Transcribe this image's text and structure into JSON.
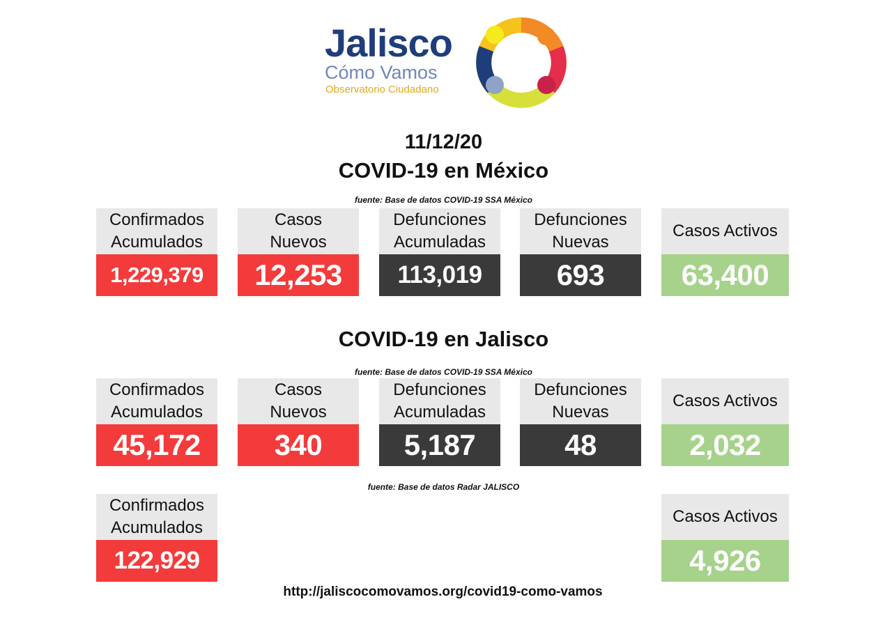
{
  "logo": {
    "title": "Jalisco",
    "subtitle": "Cómo Vamos",
    "tagline": "Observatorio Ciudadano",
    "ring_colors": [
      "#f7c21d",
      "#f28a25",
      "#e52d4c",
      "#d7df3a",
      "#6a8fc8",
      "#1f3d7a"
    ]
  },
  "date": "11/12/20",
  "sections": {
    "mexico": {
      "title": "COVID-19 en México",
      "source": "fuente: Base de datos COVID-19 SSA México",
      "cards": [
        {
          "label": "Confirmados\nAcumulados",
          "value": "1,229,379"
        },
        {
          "label": "Casos\nNuevos",
          "value": "12,253"
        },
        {
          "label": "Defunciones\nAcumuladas",
          "value": "113,019"
        },
        {
          "label": "Defunciones\nNuevas",
          "value": "693"
        },
        {
          "label": "Casos Activos",
          "value": "63,400"
        }
      ]
    },
    "jalisco": {
      "title": "COVID-19 en Jalisco",
      "source": "fuente: Base de datos COVID-19 SSA México",
      "cards": [
        {
          "label": "Confirmados\nAcumulados",
          "value": "45,172"
        },
        {
          "label": "Casos\nNuevos",
          "value": "340"
        },
        {
          "label": "Defunciones\nAcumuladas",
          "value": "5,187"
        },
        {
          "label": "Defunciones\nNuevas",
          "value": "48"
        },
        {
          "label": "Casos Activos",
          "value": "2,032"
        }
      ]
    },
    "radar": {
      "source": "fuente: Base de datos Radar JALISCO",
      "cards": [
        {
          "label": "Confirmados\nAcumulados",
          "value": "122,929"
        },
        {
          "label": "Casos Activos",
          "value": "4,926"
        }
      ]
    }
  },
  "colors": {
    "red": "#f43b3b",
    "dark": "#3a3a3a",
    "green": "#a6d28b",
    "label_bg": "#e8e8e8"
  },
  "url": "http://jaliscocomovamos.org/covid19-como-vamos"
}
